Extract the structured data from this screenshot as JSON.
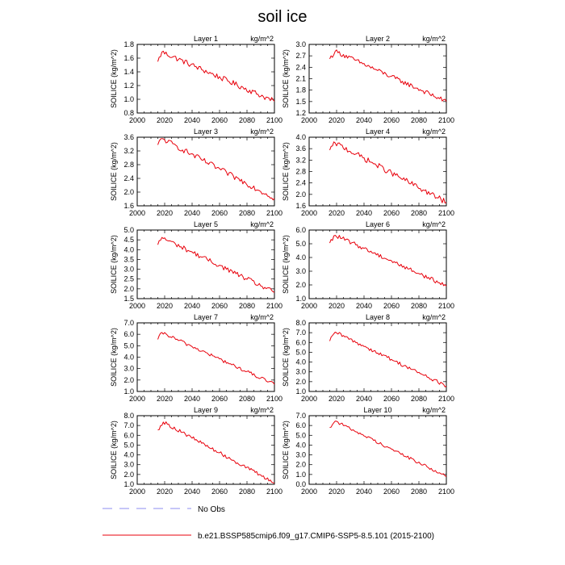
{
  "figure": {
    "title": "soil ice",
    "legend": [
      {
        "label": "No Obs",
        "color": "#8c8cf2",
        "style": "dashed"
      },
      {
        "label": "b.e21.BSSP585cmip6.f09_g17.CMIP6-SSP5-8.5.101 (2015-2100)",
        "color": "#e8000b",
        "style": "solid"
      }
    ]
  },
  "chart_data": [
    {
      "type": "line",
      "title": "Layer 1",
      "units": "kg/m^2",
      "ylabel": "SOILICE  (kg/m^2)",
      "xlim": [
        2000,
        2100
      ],
      "xticks": [
        2000,
        2020,
        2040,
        2060,
        2080,
        2100
      ],
      "ylim": [
        0.8,
        1.8
      ],
      "yticks": [
        "0.8",
        "1.0",
        "1.2",
        "1.4",
        "1.6",
        "1.8"
      ],
      "series": [
        {
          "name": "b.e21.BSSP585cmip6.f09_g17.CMIP6-SSP5-8.5.101",
          "start": 2015,
          "end": 2100,
          "first": 1.55,
          "last": 0.97,
          "peak_year": 2018,
          "peak": 1.69,
          "noise": 0.04
        }
      ]
    },
    {
      "type": "line",
      "title": "Layer 2",
      "units": "kg/m^2",
      "ylabel": "SOILICE  (kg/m^2)",
      "xlim": [
        2000,
        2100
      ],
      "xticks": [
        2000,
        2020,
        2040,
        2060,
        2080,
        2100
      ],
      "ylim": [
        1.2,
        3.0
      ],
      "yticks": [
        "1.2",
        "1.5",
        "1.8",
        "2.1",
        "2.4",
        "2.7",
        "3.0"
      ],
      "series": [
        {
          "name": "b.e21.BSSP585cmip6.f09_g17.CMIP6-SSP5-8.5.101",
          "start": 2015,
          "end": 2100,
          "first": 2.62,
          "last": 1.5,
          "peak_year": 2019,
          "peak": 2.82,
          "noise": 0.06
        }
      ]
    },
    {
      "type": "line",
      "title": "Layer 3",
      "units": "kg/m^2",
      "ylabel": "SOILICE  (kg/m^2)",
      "xlim": [
        2000,
        2100
      ],
      "xticks": [
        2000,
        2020,
        2040,
        2060,
        2080,
        2100
      ],
      "ylim": [
        1.6,
        3.6
      ],
      "yticks": [
        "1.6",
        "2.0",
        "2.4",
        "2.8",
        "3.2",
        "3.6"
      ],
      "series": [
        {
          "name": "b.e21.BSSP585cmip6.f09_g17.CMIP6-SSP5-8.5.101",
          "start": 2015,
          "end": 2100,
          "first": 3.38,
          "last": 1.82,
          "peak_year": 2018,
          "peak": 3.56,
          "noise": 0.08
        }
      ]
    },
    {
      "type": "line",
      "title": "Layer 4",
      "units": "kg/m^2",
      "ylabel": "SOILICE  (kg/m^2)",
      "xlim": [
        2000,
        2100
      ],
      "xticks": [
        2000,
        2020,
        2040,
        2060,
        2080,
        2100
      ],
      "ylim": [
        1.6,
        4.0
      ],
      "yticks": [
        "1.6",
        "2.0",
        "2.4",
        "2.8",
        "3.2",
        "3.6",
        "4.0"
      ],
      "series": [
        {
          "name": "b.e21.BSSP585cmip6.f09_g17.CMIP6-SSP5-8.5.101",
          "start": 2015,
          "end": 2100,
          "first": 3.55,
          "last": 1.72,
          "peak_year": 2019,
          "peak": 3.8,
          "noise": 0.1
        }
      ]
    },
    {
      "type": "line",
      "title": "Layer 5",
      "units": "kg/m^2",
      "ylabel": "SOILICE  (kg/m^2)",
      "xlim": [
        2000,
        2100
      ],
      "xticks": [
        2000,
        2020,
        2040,
        2060,
        2080,
        2100
      ],
      "ylim": [
        1.5,
        5.0
      ],
      "yticks": [
        "1.5",
        "2.0",
        "2.5",
        "3.0",
        "3.5",
        "4.0",
        "4.5",
        "5.0"
      ],
      "series": [
        {
          "name": "b.e21.BSSP585cmip6.f09_g17.CMIP6-SSP5-8.5.101",
          "start": 2015,
          "end": 2100,
          "first": 4.25,
          "last": 1.82,
          "peak_year": 2018,
          "peak": 4.62,
          "noise": 0.12
        }
      ]
    },
    {
      "type": "line",
      "title": "Layer 6",
      "units": "kg/m^2",
      "ylabel": "SOILICE  (kg/m^2)",
      "xlim": [
        2000,
        2100
      ],
      "xticks": [
        2000,
        2020,
        2040,
        2060,
        2080,
        2100
      ],
      "ylim": [
        1.0,
        6.0
      ],
      "yticks": [
        "1.0",
        "2.0",
        "3.0",
        "4.0",
        "5.0",
        "6.0"
      ],
      "series": [
        {
          "name": "b.e21.BSSP585cmip6.f09_g17.CMIP6-SSP5-8.5.101",
          "start": 2015,
          "end": 2100,
          "first": 5.05,
          "last": 1.92,
          "peak_year": 2019,
          "peak": 5.62,
          "noise": 0.15
        }
      ]
    },
    {
      "type": "line",
      "title": "Layer 7",
      "units": "kg/m^2",
      "ylabel": "SOILICE  (kg/m^2)",
      "xlim": [
        2000,
        2100
      ],
      "xticks": [
        2000,
        2020,
        2040,
        2060,
        2080,
        2100
      ],
      "ylim": [
        1.0,
        7.0
      ],
      "yticks": [
        "1.0",
        "2.0",
        "3.0",
        "4.0",
        "5.0",
        "6.0",
        "7.0"
      ],
      "series": [
        {
          "name": "b.e21.BSSP585cmip6.f09_g17.CMIP6-SSP5-8.5.101",
          "start": 2015,
          "end": 2100,
          "first": 5.55,
          "last": 1.62,
          "peak_year": 2018,
          "peak": 6.15,
          "noise": 0.15
        }
      ]
    },
    {
      "type": "line",
      "title": "Layer 8",
      "units": "kg/m^2",
      "ylabel": "SOILICE  (kg/m^2)",
      "xlim": [
        2000,
        2100
      ],
      "xticks": [
        2000,
        2020,
        2040,
        2060,
        2080,
        2100
      ],
      "ylim": [
        1.0,
        8.0
      ],
      "yticks": [
        "1.0",
        "2.0",
        "3.0",
        "4.0",
        "5.0",
        "6.0",
        "7.0",
        "8.0"
      ],
      "series": [
        {
          "name": "b.e21.BSSP585cmip6.f09_g17.CMIP6-SSP5-8.5.101",
          "start": 2015,
          "end": 2100,
          "first": 6.15,
          "last": 1.55,
          "peak_year": 2019,
          "peak": 7.05,
          "noise": 0.18
        }
      ]
    },
    {
      "type": "line",
      "title": "Layer 9",
      "units": "kg/m^2",
      "ylabel": "SOILICE  (kg/m^2)",
      "xlim": [
        2000,
        2100
      ],
      "xticks": [
        2000,
        2020,
        2040,
        2060,
        2080,
        2100
      ],
      "ylim": [
        1.0,
        8.0
      ],
      "yticks": [
        "1.0",
        "2.0",
        "3.0",
        "4.0",
        "5.0",
        "6.0",
        "7.0",
        "8.0"
      ],
      "series": [
        {
          "name": "b.e21.BSSP585cmip6.f09_g17.CMIP6-SSP5-8.5.101",
          "start": 2015,
          "end": 2100,
          "first": 6.55,
          "last": 1.15,
          "peak_year": 2019,
          "peak": 7.35,
          "noise": 0.18
        }
      ]
    },
    {
      "type": "line",
      "title": "Layer 10",
      "units": "kg/m^2",
      "ylabel": "SOILICE  (kg/m^2)",
      "xlim": [
        2000,
        2100
      ],
      "xticks": [
        2000,
        2020,
        2040,
        2060,
        2080,
        2100
      ],
      "ylim": [
        0.0,
        7.0
      ],
      "yticks": [
        "0.0",
        "1.0",
        "2.0",
        "3.0",
        "4.0",
        "5.0",
        "6.0",
        "7.0"
      ],
      "series": [
        {
          "name": "b.e21.BSSP585cmip6.f09_g17.CMIP6-SSP5-8.5.101",
          "start": 2015,
          "end": 2100,
          "first": 5.8,
          "last": 0.8,
          "peak_year": 2019,
          "peak": 6.45,
          "noise": 0.15
        }
      ]
    }
  ]
}
